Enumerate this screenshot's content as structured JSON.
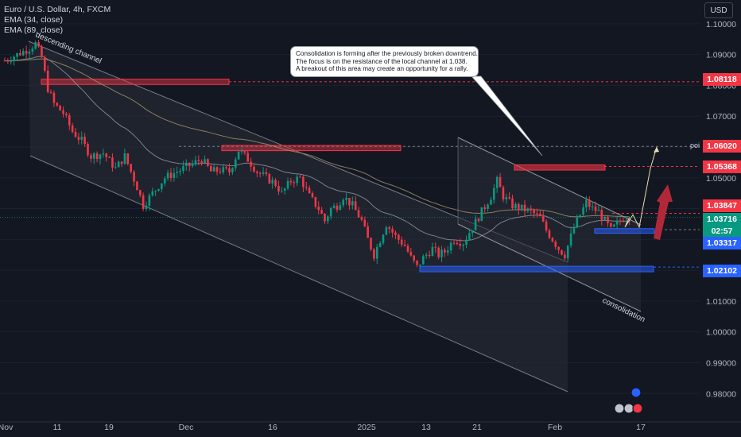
{
  "legend": {
    "symbol": "Euro / U.S. Dollar, 4h, FXCM",
    "ema1": "EMA (34, close)",
    "ema2": "EMA (89, close)"
  },
  "currency_button": "USD",
  "callout": {
    "line1": "Consolidation is forming after the previously broken downtrend.",
    "line2": "The focus is on the resistance of the local channel at 1.038.",
    "line3": "A breakout of this area may create an opportunity for a rally."
  },
  "annotations": {
    "channel_label": "descending channel",
    "consolidation_label": "consolidation",
    "poi_label": "poi"
  },
  "price_labels": [
    {
      "id": "p1",
      "text": "1.08118",
      "color": "#f23645"
    },
    {
      "id": "p2",
      "text": "1.06020",
      "color": "#f23645"
    },
    {
      "id": "p3",
      "text": "1.05368",
      "color": "#f23645"
    },
    {
      "id": "p4",
      "text": "1.03847",
      "color": "#f23645"
    },
    {
      "id": "p5",
      "text": "1.03716",
      "color": "#089981"
    },
    {
      "id": "p6",
      "text": "02:57",
      "color": "#089981"
    },
    {
      "id": "p7",
      "text": "1.03317",
      "color": "#2962ff"
    },
    {
      "id": "p8",
      "text": "1.02102",
      "color": "#2962ff"
    }
  ],
  "colors": {
    "background": "#131722",
    "up": "#089981",
    "down": "#f23645",
    "ema34": "#9598a1",
    "ema89": "#a6976a",
    "resistance": "#f23645",
    "support": "#2962ff"
  },
  "chart_data": {
    "type": "candlestick",
    "title": "Euro / U.S. Dollar, 4h, FXCM",
    "y_ticks": [
      1.1,
      1.09,
      1.08,
      1.07,
      1.06,
      1.05,
      1.04,
      1.03,
      1.02,
      1.01,
      1.0,
      0.99,
      0.98
    ],
    "y_tick_labels": [
      "1.10000",
      "1.09000",
      "1.08000",
      "1.07000",
      "1.06000",
      "1.05000",
      "1.04000",
      "1.03000",
      "1.02000",
      "1.01000",
      "1.00000",
      "0.99000",
      "0.98000"
    ],
    "ylim": [
      0.9775,
      1.1015
    ],
    "x_ticks": [
      "Nov",
      "11",
      "19",
      "Dec",
      "16",
      "2025",
      "13",
      "21",
      "Feb",
      "17"
    ],
    "path": [
      [
        0,
        1.088
      ],
      [
        4,
        1.09
      ],
      [
        8,
        1.092
      ],
      [
        10,
        1.0935
      ],
      [
        12,
        1.089
      ],
      [
        14,
        1.079
      ],
      [
        16,
        1.074
      ],
      [
        19,
        1.071
      ],
      [
        22,
        1.065
      ],
      [
        25,
        1.062
      ],
      [
        28,
        1.057
      ],
      [
        32,
        1.058
      ],
      [
        36,
        1.053
      ],
      [
        39,
        1.057
      ],
      [
        41,
        1.052
      ],
      [
        43,
        1.047
      ],
      [
        45,
        1.041
      ],
      [
        48,
        1.045
      ],
      [
        52,
        1.05
      ],
      [
        56,
        1.052
      ],
      [
        60,
        1.054
      ],
      [
        64,
        1.056
      ],
      [
        67,
        1.052
      ],
      [
        70,
        1.0525
      ],
      [
        73,
        1.052
      ],
      [
        76,
        1.059
      ],
      [
        79,
        1.056
      ],
      [
        82,
        1.052
      ],
      [
        85,
        1.05
      ],
      [
        88,
        1.048
      ],
      [
        90,
        1.045
      ],
      [
        93,
        1.049
      ],
      [
        96,
        1.05
      ],
      [
        99,
        1.044
      ],
      [
        102,
        1.04
      ],
      [
        104,
        1.036
      ],
      [
        106,
        1.04
      ],
      [
        108,
        1.041
      ],
      [
        110,
        1.044
      ],
      [
        113,
        1.041
      ],
      [
        116,
        1.036
      ],
      [
        118,
        1.03
      ],
      [
        120,
        1.025
      ],
      [
        122,
        1.03
      ],
      [
        124,
        1.035
      ],
      [
        127,
        1.031
      ],
      [
        130,
        1.028
      ],
      [
        132,
        1.024
      ],
      [
        134,
        1.021
      ],
      [
        136,
        1.024
      ],
      [
        139,
        1.027
      ],
      [
        141,
        1.025
      ],
      [
        143,
        1.026
      ],
      [
        146,
        1.03
      ],
      [
        149,
        1.029
      ],
      [
        152,
        1.034
      ],
      [
        155,
        1.039
      ],
      [
        158,
        1.044
      ],
      [
        160,
        1.049
      ],
      [
        162,
        1.044
      ],
      [
        165,
        1.041
      ],
      [
        168,
        1.04
      ],
      [
        171,
        1.039
      ],
      [
        174,
        1.037
      ],
      [
        176,
        1.033
      ],
      [
        178,
        1.03
      ],
      [
        180,
        1.027
      ],
      [
        182,
        1.025
      ],
      [
        183,
        1.028
      ],
      [
        185,
        1.034
      ],
      [
        187,
        1.038
      ],
      [
        189,
        1.042
      ],
      [
        191,
        1.04
      ],
      [
        193,
        1.039
      ],
      [
        195,
        1.036
      ],
      [
        197,
        1.033
      ],
      [
        199,
        1.035
      ],
      [
        201,
        1.037
      ],
      [
        203,
        1.0372
      ]
    ],
    "ema34_color": "#9598a1",
    "ema89_color": "#a6976a",
    "levels": {
      "resistance": [
        1.08118,
        1.0602,
        1.05368,
        1.03847
      ],
      "support": [
        1.03317,
        1.02102
      ],
      "poi": 1.0602,
      "last_price": 1.03716
    },
    "countdown": "02:57",
    "projection": [
      1.03716,
      1.034,
      1.038,
      1.034,
      1.053,
      1.06
    ]
  }
}
